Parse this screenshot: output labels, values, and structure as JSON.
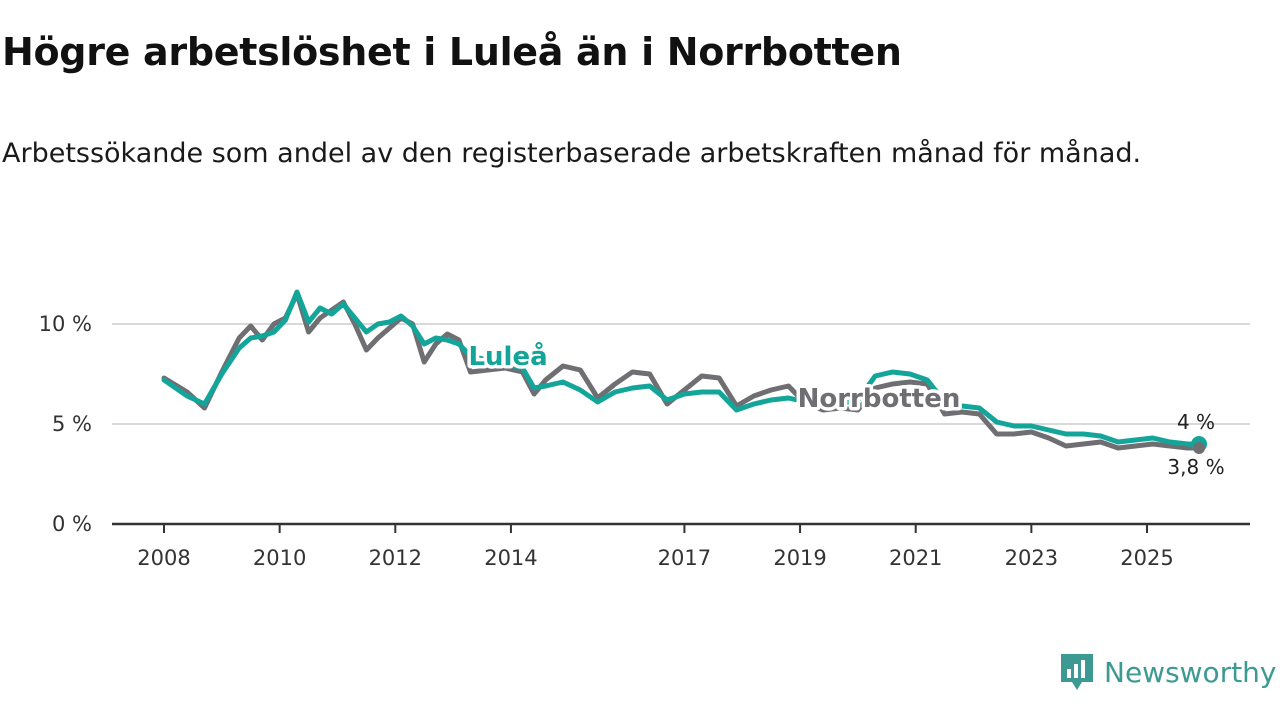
{
  "title": "Högre arbetslöshet i Luleå än i Norrbotten",
  "subtitle": "Arbetssökande som andel av den registerbaserade arbetskraften månad för månad.",
  "brand": {
    "name": "Newsworthy",
    "icon": "newsworthy-logo-icon"
  },
  "colors": {
    "lulea": "#14a59a",
    "norrbotten": "#6f6e73",
    "grid": "#d9d9d9",
    "axis": "#333333"
  },
  "chart_data": {
    "type": "line",
    "title": "Högre arbetslöshet i Luleå än i Norrbotten",
    "xlabel": "",
    "ylabel": "",
    "ylim": [
      0,
      12.5
    ],
    "xlim": [
      2007.9,
      2027.0
    ],
    "yticks": [
      0,
      5,
      10
    ],
    "ytick_labels": [
      "0 %",
      "5 %",
      "10 %"
    ],
    "xticks": [
      2008,
      2010,
      2012,
      2014,
      2017,
      2019,
      2021,
      2023,
      2025
    ],
    "xtick_labels": [
      "2008",
      "2010",
      "2012",
      "2014",
      "2017",
      "2019",
      "2021",
      "2023",
      "2025"
    ],
    "grid": true,
    "series": [
      {
        "name": "Luleå",
        "label_at": [
          2013.3,
          8.4
        ],
        "end_label": "4 %",
        "x": [
          2008.0,
          2008.4,
          2008.7,
          2009.0,
          2009.3,
          2009.5,
          2009.7,
          2009.9,
          2010.1,
          2010.3,
          2010.5,
          2010.7,
          2010.9,
          2011.1,
          2011.3,
          2011.5,
          2011.7,
          2011.9,
          2012.1,
          2012.3,
          2012.5,
          2012.7,
          2012.9,
          2013.1,
          2013.3,
          2013.6,
          2013.9,
          2014.2,
          2014.4,
          2014.6,
          2014.9,
          2015.2,
          2015.5,
          2015.8,
          2016.1,
          2016.4,
          2016.7,
          2017.0,
          2017.3,
          2017.6,
          2017.9,
          2018.2,
          2018.5,
          2018.8,
          2019.1,
          2019.4,
          2019.7,
          2020.0,
          2020.3,
          2020.6,
          2020.9,
          2021.2,
          2021.5,
          2021.8,
          2022.1,
          2022.4,
          2022.7,
          2023.0,
          2023.3,
          2023.6,
          2023.9,
          2024.2,
          2024.5,
          2024.8,
          2025.1,
          2025.4,
          2025.7,
          2025.9
        ],
        "values": [
          7.2,
          6.4,
          6.0,
          7.5,
          8.8,
          9.3,
          9.4,
          9.6,
          10.2,
          11.6,
          10.1,
          10.8,
          10.5,
          11.0,
          10.3,
          9.6,
          10.0,
          10.1,
          10.4,
          9.9,
          9.0,
          9.3,
          9.2,
          9.0,
          8.4,
          8.2,
          8.0,
          7.8,
          6.8,
          6.9,
          7.1,
          6.7,
          6.1,
          6.6,
          6.8,
          6.9,
          6.2,
          6.5,
          6.6,
          6.6,
          5.7,
          6.0,
          6.2,
          6.3,
          6.1,
          5.9,
          6.0,
          6.2,
          7.4,
          7.6,
          7.5,
          7.2,
          6.1,
          5.9,
          5.8,
          5.1,
          4.9,
          4.9,
          4.7,
          4.5,
          4.5,
          4.4,
          4.1,
          4.2,
          4.3,
          4.1,
          4.0,
          4.0
        ]
      },
      {
        "name": "Norrbotten",
        "label_at": [
          2019.5,
          6.3
        ],
        "end_label": "3,8 %",
        "x": [
          2008.0,
          2008.4,
          2008.7,
          2009.0,
          2009.3,
          2009.5,
          2009.7,
          2009.9,
          2010.1,
          2010.3,
          2010.5,
          2010.7,
          2010.9,
          2011.1,
          2011.3,
          2011.5,
          2011.7,
          2011.9,
          2012.1,
          2012.3,
          2012.5,
          2012.7,
          2012.9,
          2013.1,
          2013.3,
          2013.6,
          2013.9,
          2014.2,
          2014.4,
          2014.6,
          2014.9,
          2015.2,
          2015.5,
          2015.8,
          2016.1,
          2016.4,
          2016.7,
          2017.0,
          2017.3,
          2017.6,
          2017.9,
          2018.2,
          2018.5,
          2018.8,
          2019.1,
          2019.4,
          2019.7,
          2020.0,
          2020.3,
          2020.6,
          2020.9,
          2021.2,
          2021.5,
          2021.8,
          2022.1,
          2022.4,
          2022.7,
          2023.0,
          2023.3,
          2023.6,
          2023.9,
          2024.2,
          2024.5,
          2024.8,
          2025.1,
          2025.4,
          2025.7,
          2025.9
        ],
        "values": [
          7.3,
          6.6,
          5.8,
          7.6,
          9.3,
          9.9,
          9.2,
          10.0,
          10.3,
          11.5,
          9.6,
          10.3,
          10.7,
          11.1,
          10.0,
          8.7,
          9.3,
          9.8,
          10.3,
          10.0,
          8.1,
          9.0,
          9.5,
          9.2,
          7.6,
          7.7,
          7.8,
          7.6,
          6.5,
          7.2,
          7.9,
          7.7,
          6.3,
          7.0,
          7.6,
          7.5,
          6.0,
          6.7,
          7.4,
          7.3,
          5.9,
          6.4,
          6.7,
          6.9,
          6.0,
          5.7,
          5.8,
          5.7,
          6.8,
          7.0,
          7.1,
          7.0,
          5.5,
          5.6,
          5.5,
          4.5,
          4.5,
          4.6,
          4.3,
          3.9,
          4.0,
          4.1,
          3.8,
          3.9,
          4.0,
          3.9,
          3.8,
          3.8
        ]
      }
    ]
  }
}
